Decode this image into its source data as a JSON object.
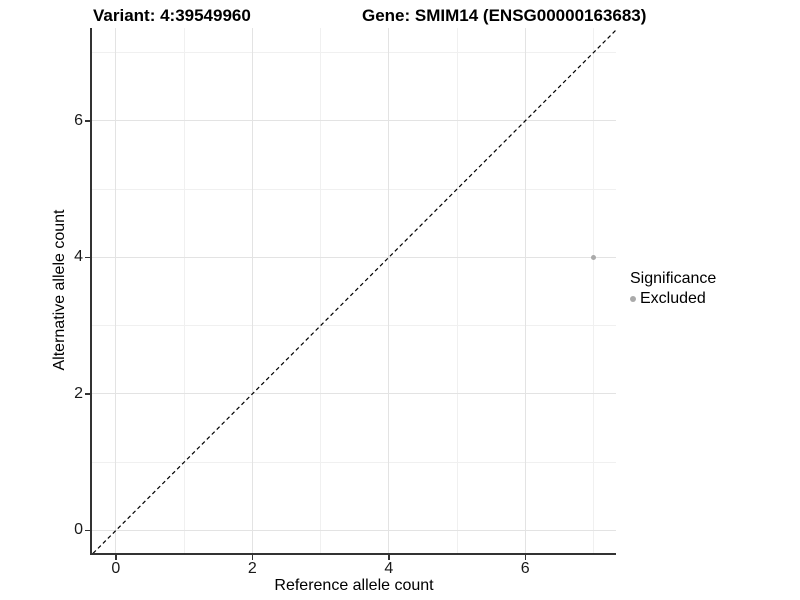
{
  "titles": {
    "variant": "Variant: 4:39549960",
    "gene": "Gene: SMIM14 (ENSG00000163683)"
  },
  "chart_data": {
    "type": "scatter",
    "title_left": "Variant: 4:39549960",
    "title_right": "Gene: SMIM14 (ENSG00000163683)",
    "xlabel": "Reference allele count",
    "ylabel": "Alternative allele count",
    "xlim": [
      -0.35,
      7.33
    ],
    "ylim": [
      -0.33,
      7.36
    ],
    "x_ticks": [
      0,
      2,
      4,
      6
    ],
    "y_ticks": [
      0,
      2,
      4,
      6
    ],
    "x_minor_gridlines": [
      1,
      3,
      5,
      7
    ],
    "y_minor_gridlines": [
      1,
      3,
      5,
      7
    ],
    "grid": "major-and-minor",
    "identity_line": {
      "slope": 1,
      "intercept": 0,
      "style": "dashed",
      "color": "#000000"
    },
    "series": [
      {
        "name": "Excluded",
        "color": "#aaaaaa",
        "marker_radius": 2.5,
        "points": [
          {
            "x": 7,
            "y": 4
          }
        ]
      }
    ],
    "legend": {
      "title": "Significance",
      "position": "right",
      "entries": [
        {
          "label": "Excluded",
          "color": "#aaaaaa"
        }
      ]
    }
  },
  "colors": {
    "background": "#ffffff",
    "grid_major": "#e3e3e3",
    "grid_minor": "#f0f0f0",
    "axis_line": "#333333",
    "tick_text": "#1a1a1a",
    "point_gray": "#aaaaaa"
  }
}
